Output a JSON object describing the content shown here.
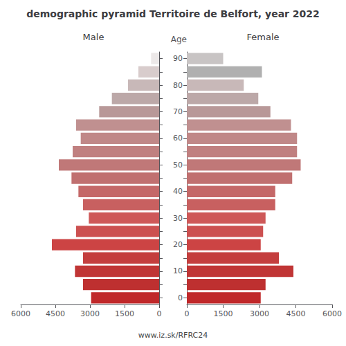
{
  "chart_data": {
    "type": "bar",
    "orientation": "horizontal",
    "title": "demographic pyramid Territoire de Belfort, year 2022",
    "ylabel": "Age",
    "annotations": [
      "www.iz.sk/RFRC24"
    ],
    "categories": [
      "0",
      null,
      "10",
      null,
      "20",
      null,
      "30",
      null,
      "40",
      null,
      "50",
      null,
      "60",
      null,
      "70",
      null,
      "80",
      null,
      "90"
    ],
    "series": [
      {
        "name": "Male",
        "values": [
          2950,
          3300,
          3650,
          3300,
          4650,
          3600,
          3050,
          3300,
          3500,
          3800,
          4350,
          3750,
          3400,
          3600,
          2600,
          2050,
          1350,
          900,
          350
        ],
        "colors": [
          "#c0282a",
          "#be3030",
          "#c03535",
          "#c43e3e",
          "#cc4444",
          "#cc5050",
          "#ce5858",
          "#c86060",
          "#c46868",
          "#c07070",
          "#c07878",
          "#c08080",
          "#c08888",
          "#c09090",
          "#b89898",
          "#bca8a8",
          "#c8b8b8",
          "#d8cccc",
          "#ece8e8"
        ]
      },
      {
        "name": "Female",
        "values": [
          3050,
          3250,
          4400,
          3800,
          3050,
          3150,
          3250,
          3650,
          3650,
          4350,
          4700,
          4550,
          4550,
          4300,
          3450,
          2950,
          2350,
          3100,
          1500
        ],
        "colors": [
          "#c0282a",
          "#be3030",
          "#c03535",
          "#c43e3e",
          "#cc4444",
          "#cc5050",
          "#ce5858",
          "#c86060",
          "#c46868",
          "#c07070",
          "#c07878",
          "#c08080",
          "#c08888",
          "#c09090",
          "#b89898",
          "#bca8a8",
          "#c8b8b8",
          "#b0b0b0",
          "#c8c4c4"
        ]
      }
    ],
    "xlim": [
      0,
      6000
    ],
    "xticks": [
      0,
      1500,
      3000,
      4500,
      6000
    ],
    "grid": false
  }
}
